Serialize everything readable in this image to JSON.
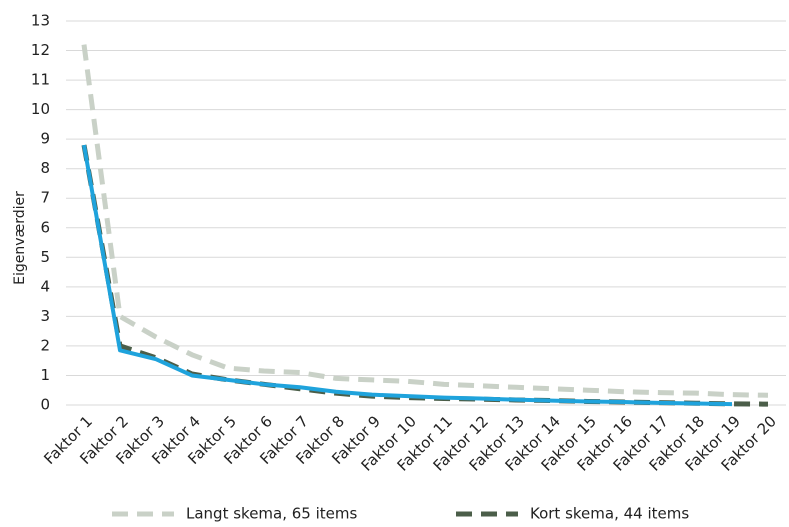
{
  "chart_data": {
    "type": "line",
    "y_label": "Eigenværdier",
    "categories": [
      "Faktor 1",
      "Faktor 2",
      "Faktor 3",
      "Faktor 4",
      "Faktor 5",
      "Faktor 6",
      "Faktor 7",
      "Faktor 8",
      "Faktor 9",
      "Faktor 10",
      "Faktor 11",
      "Faktor 12",
      "Faktor 13",
      "Faktor 14",
      "Faktor 15",
      "Faktor 16",
      "Faktor 17",
      "Faktor 18",
      "Faktor 19",
      "Faktor 20"
    ],
    "series": [
      {
        "name": "Langt skema, 65 items",
        "color": "#c9d1c7",
        "dash": true,
        "values": [
          12.2,
          3.0,
          2.3,
          1.7,
          1.25,
          1.15,
          1.1,
          0.9,
          0.85,
          0.8,
          0.7,
          0.65,
          0.6,
          0.55,
          0.5,
          0.45,
          0.42,
          0.4,
          0.35,
          0.33
        ]
      },
      {
        "name": "Kort skema, 44 items",
        "color": "#4b5e49",
        "dash": true,
        "values": [
          8.8,
          2.0,
          1.6,
          1.05,
          0.85,
          0.7,
          0.55,
          0.4,
          0.3,
          0.25,
          0.22,
          0.2,
          0.17,
          0.15,
          0.12,
          0.1,
          0.08,
          0.06,
          0.04,
          0.03
        ]
      },
      {
        "color": "#1fa3dc",
        "dash": false,
        "values": [
          8.8,
          1.85,
          1.55,
          1.0,
          0.85,
          0.7,
          0.6,
          0.45,
          0.35,
          0.3,
          0.25,
          0.22,
          0.18,
          0.15,
          0.12,
          0.1,
          0.07,
          0.05,
          0.03,
          null
        ]
      }
    ],
    "ylim": [
      0,
      13
    ],
    "yticks": [
      0,
      1,
      2,
      3,
      4,
      5,
      6,
      7,
      8,
      9,
      10,
      11,
      12,
      13
    ],
    "grid": true
  }
}
